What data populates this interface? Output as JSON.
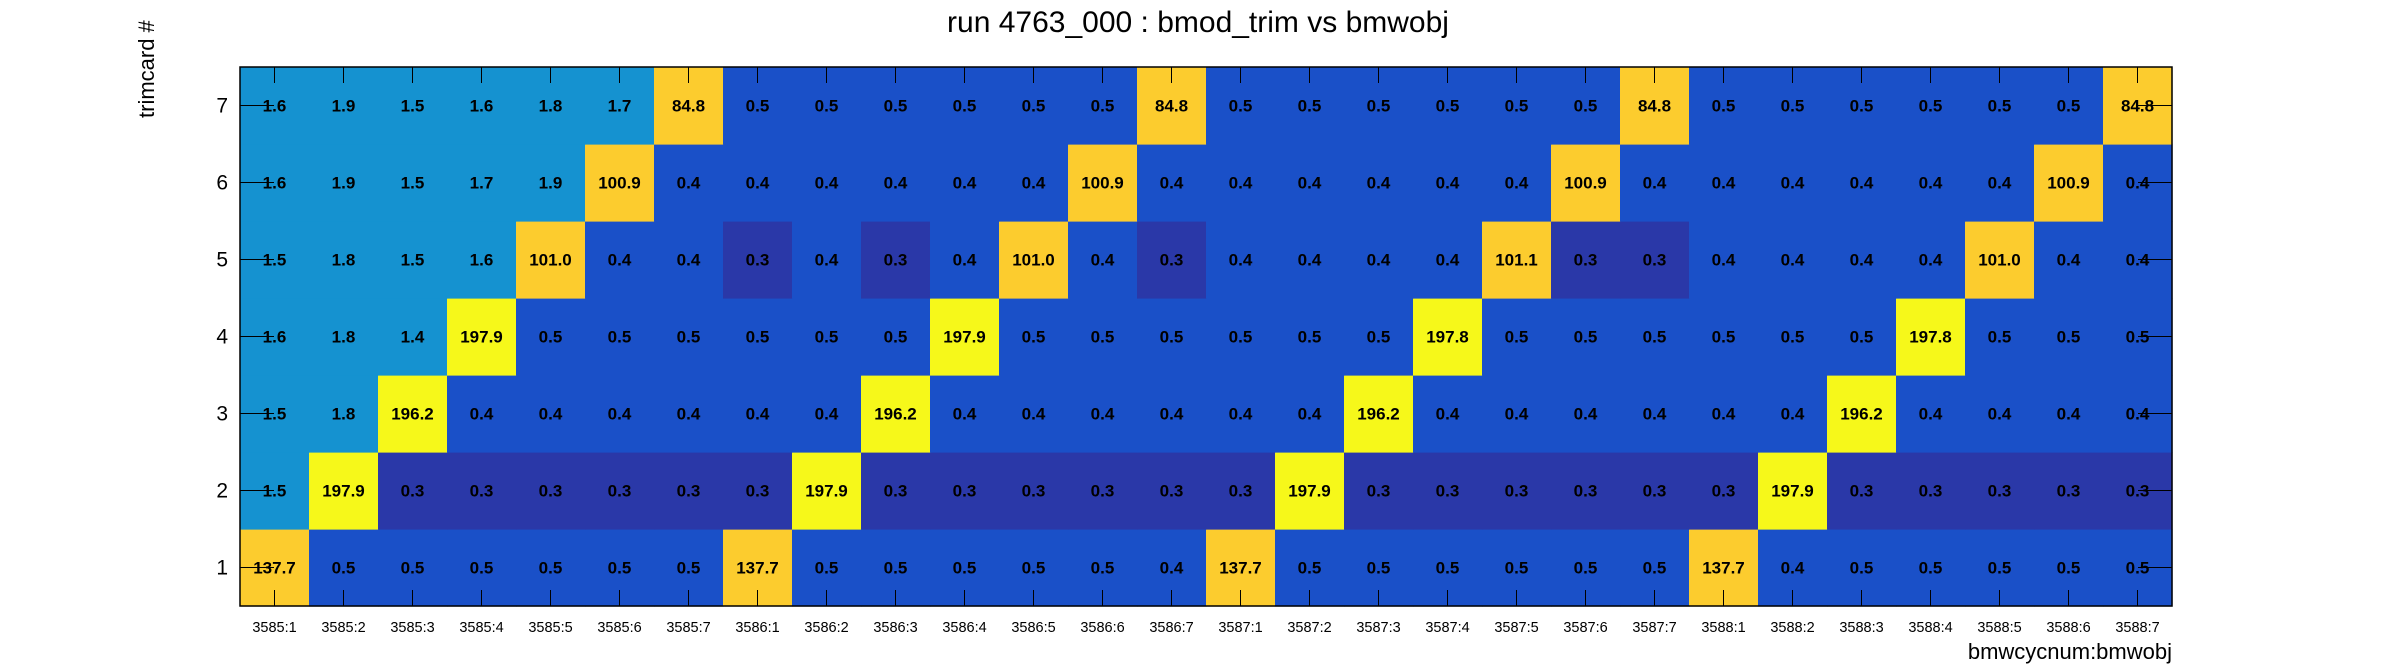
{
  "chart_data": {
    "type": "heatmap",
    "title": "run 4763_000 : bmod_trim vs bmwobj",
    "xlabel": "bmwcycnum:bmwobj",
    "ylabel": "trimcard #",
    "categories": [
      "3585:1",
      "3585:2",
      "3585:3",
      "3585:4",
      "3585:5",
      "3585:6",
      "3585:7",
      "3586:1",
      "3586:2",
      "3586:3",
      "3586:4",
      "3586:5",
      "3586:6",
      "3586:7",
      "3587:1",
      "3587:2",
      "3587:3",
      "3587:4",
      "3587:5",
      "3587:6",
      "3587:7",
      "3588:1",
      "3588:2",
      "3588:3",
      "3588:4",
      "3588:5",
      "3588:6",
      "3588:7"
    ],
    "y_categories": [
      "1",
      "2",
      "3",
      "4",
      "5",
      "6",
      "7"
    ],
    "values": [
      [
        "137.7",
        "0.5",
        "0.5",
        "0.5",
        "0.5",
        "0.5",
        "0.5",
        "137.7",
        "0.5",
        "0.5",
        "0.5",
        "0.5",
        "0.5",
        "0.4",
        "137.7",
        "0.5",
        "0.5",
        "0.5",
        "0.5",
        "0.5",
        "0.5",
        "137.7",
        "0.4",
        "0.5",
        "0.5",
        "0.5",
        "0.5",
        "0.5"
      ],
      [
        "1.5",
        "197.9",
        "0.3",
        "0.3",
        "0.3",
        "0.3",
        "0.3",
        "0.3",
        "197.9",
        "0.3",
        "0.3",
        "0.3",
        "0.3",
        "0.3",
        "0.3",
        "197.9",
        "0.3",
        "0.3",
        "0.3",
        "0.3",
        "0.3",
        "0.3",
        "197.9",
        "0.3",
        "0.3",
        "0.3",
        "0.3",
        "0.3"
      ],
      [
        "1.5",
        "1.8",
        "196.2",
        "0.4",
        "0.4",
        "0.4",
        "0.4",
        "0.4",
        "0.4",
        "196.2",
        "0.4",
        "0.4",
        "0.4",
        "0.4",
        "0.4",
        "0.4",
        "196.2",
        "0.4",
        "0.4",
        "0.4",
        "0.4",
        "0.4",
        "0.4",
        "196.2",
        "0.4",
        "0.4",
        "0.4",
        "0.4"
      ],
      [
        "1.6",
        "1.8",
        "1.4",
        "197.9",
        "0.5",
        "0.5",
        "0.5",
        "0.5",
        "0.5",
        "0.5",
        "197.9",
        "0.5",
        "0.5",
        "0.5",
        "0.5",
        "0.5",
        "0.5",
        "197.8",
        "0.5",
        "0.5",
        "0.5",
        "0.5",
        "0.5",
        "0.5",
        "197.8",
        "0.5",
        "0.5",
        "0.5"
      ],
      [
        "1.5",
        "1.8",
        "1.5",
        "1.6",
        "101.0",
        "0.4",
        "0.4",
        "0.3",
        "0.4",
        "0.3",
        "0.4",
        "101.0",
        "0.4",
        "0.3",
        "0.4",
        "0.4",
        "0.4",
        "0.4",
        "101.1",
        "0.3",
        "0.3",
        "0.4",
        "0.4",
        "0.4",
        "0.4",
        "101.0",
        "0.4",
        "0.4"
      ],
      [
        "1.6",
        "1.9",
        "1.5",
        "1.7",
        "1.9",
        "100.9",
        "0.4",
        "0.4",
        "0.4",
        "0.4",
        "0.4",
        "0.4",
        "100.9",
        "0.4",
        "0.4",
        "0.4",
        "0.4",
        "0.4",
        "0.4",
        "100.9",
        "0.4",
        "0.4",
        "0.4",
        "0.4",
        "0.4",
        "0.4",
        "100.9",
        "0.4"
      ],
      [
        "1.6",
        "1.9",
        "1.5",
        "1.6",
        "1.8",
        "1.7",
        "84.8",
        "0.5",
        "0.5",
        "0.5",
        "0.5",
        "0.5",
        "0.5",
        "84.8",
        "0.5",
        "0.5",
        "0.5",
        "0.5",
        "0.5",
        "0.5",
        "84.8",
        "0.5",
        "0.5",
        "0.5",
        "0.5",
        "0.5",
        "0.5",
        "84.8"
      ]
    ],
    "grid": false,
    "legend": "none",
    "colors": {
      "deep": "#2a38a8",
      "mid": "#1a50c8",
      "light": "#1592d0",
      "gold": "#fccc2e",
      "yellow": "#f6f81a"
    }
  }
}
